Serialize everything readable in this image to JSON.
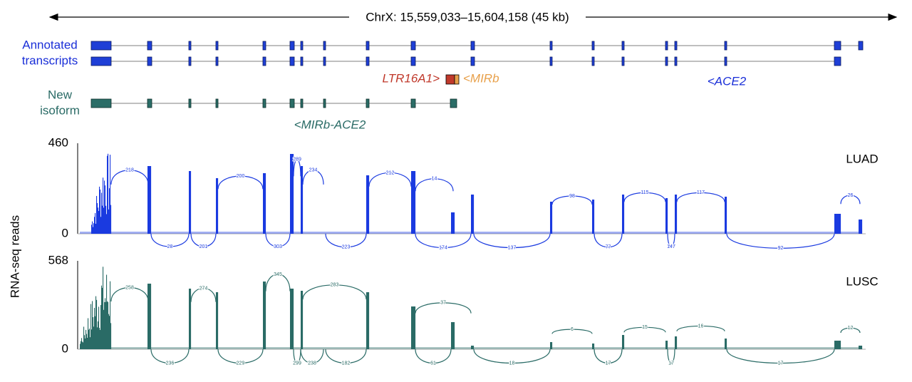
{
  "header": {
    "region": "ChrX: 15,559,033–15,604,158 (45 kb)"
  },
  "tracks": {
    "annotated": [
      "Annotated",
      "transcripts"
    ],
    "new": [
      "New",
      "isoform"
    ]
  },
  "features": {
    "ltr": "LTR16A1>",
    "mirb": "<MIRb",
    "ace2": "<ACE2",
    "fusion": "<MIRb-ACE2"
  },
  "y_axis_label": "RNA-seq reads",
  "panels": [
    {
      "name": "LUAD",
      "ytick_top": 460,
      "ytick_bottom": 0,
      "junctions_above": [
        "218",
        "200",
        "289",
        "234",
        "212",
        "14",
        "98",
        "115",
        "117",
        "26"
      ],
      "junctions_below": [
        "28",
        "201",
        "303",
        "223",
        "174",
        "137",
        "77",
        "147",
        "92"
      ]
    },
    {
      "name": "LUSC",
      "ytick_top": 568,
      "ytick_bottom": 0,
      "junctions_above": [
        "258",
        "274",
        "345",
        "283",
        "37",
        "6",
        "15",
        "16",
        "12"
      ],
      "junctions_below": [
        "236",
        "229",
        "299",
        "238",
        "182",
        "61",
        "18",
        "17",
        "17",
        "17"
      ]
    }
  ]
}
